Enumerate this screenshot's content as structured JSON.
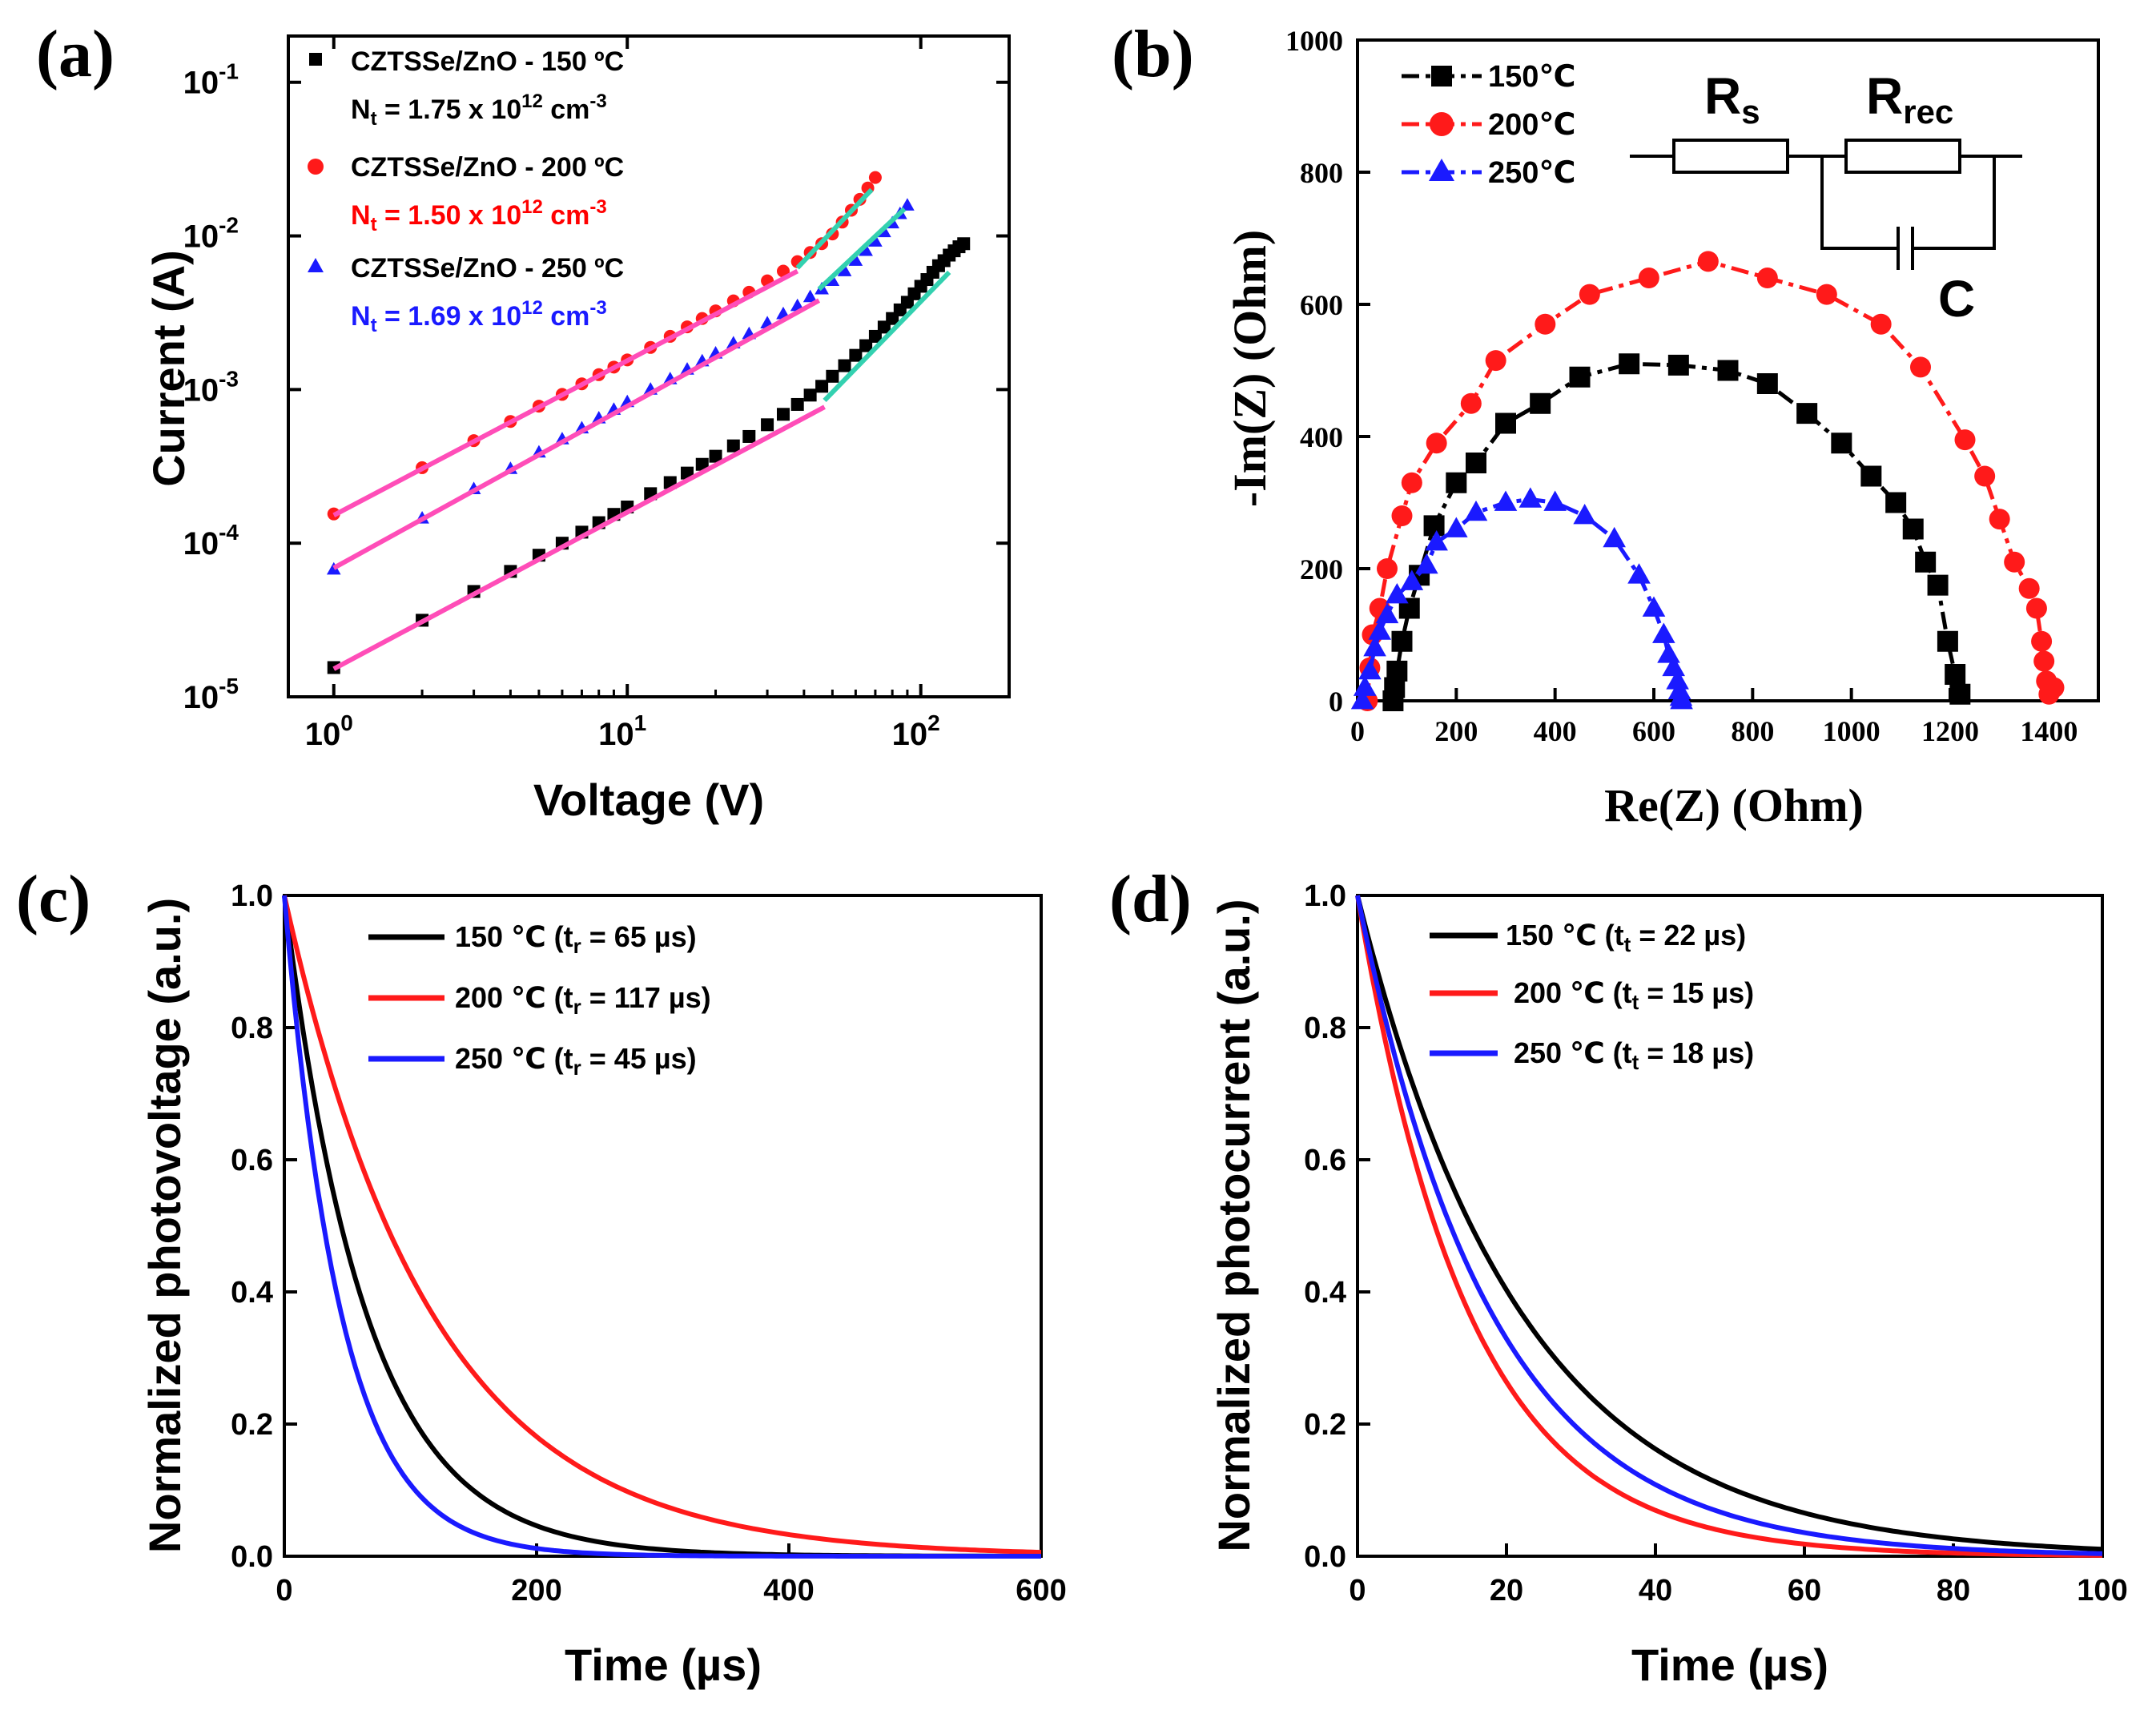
{
  "colors": {
    "black": "#000000",
    "red": "#ff1a1a",
    "blue": "#1a1aff",
    "fit_pink": "#ff4db8",
    "fit_teal": "#33d1b0",
    "red_text": "#ff0000",
    "blue_text": "#1a1aff"
  },
  "chart_data": [
    {
      "panel": "(a)",
      "type": "scatter",
      "xscale": "log",
      "yscale": "log",
      "xlabel": "Voltage (V)",
      "ylabel": "Current (A)",
      "xlim": [
        0.7,
        200
      ],
      "ylim": [
        1e-05,
        0.2
      ],
      "x_tick_labels": [
        {
          "value": 1,
          "base": "10",
          "exp": "0"
        },
        {
          "value": 10,
          "base": "10",
          "exp": "1"
        },
        {
          "value": 100,
          "base": "10",
          "exp": "2"
        }
      ],
      "y_tick_labels": [
        {
          "value": 1e-05,
          "base": "10",
          "exp": "-5"
        },
        {
          "value": 0.0001,
          "base": "10",
          "exp": "-4"
        },
        {
          "value": 0.001,
          "base": "10",
          "exp": "-3"
        },
        {
          "value": 0.01,
          "base": "10",
          "exp": "-2"
        },
        {
          "value": 0.1,
          "base": "10",
          "exp": "-1"
        }
      ],
      "legend": [
        {
          "series": "150",
          "label": "CZTSSe/ZnO - 150 ºC",
          "nt_prefix": "N",
          "nt_sub": "t",
          "nt_value": " = 1.75 x 10",
          "nt_exp": "12",
          "nt_unit": " cm",
          "nt_unit_exp": "-3"
        },
        {
          "series": "200",
          "label": "CZTSSe/ZnO - 200 ºC",
          "nt_prefix": "N",
          "nt_sub": "t",
          "nt_value": " = 1.50 x 10",
          "nt_exp": "12",
          "nt_unit": " cm",
          "nt_unit_exp": "-3"
        },
        {
          "series": "250",
          "label": "CZTSSe/ZnO - 250 ºC",
          "nt_prefix": "N",
          "nt_sub": "t",
          "nt_value": " = 1.69 x 10",
          "nt_exp": "12",
          "nt_unit": " cm",
          "nt_unit_exp": "-3"
        }
      ],
      "series": [
        {
          "name": "150",
          "marker": "square",
          "color": "#000000",
          "x": [
            1,
            2,
            3,
            4,
            5,
            6,
            7,
            8,
            9,
            10,
            12,
            14,
            16,
            18,
            20,
            23,
            26,
            30,
            34,
            38,
            42,
            46,
            50,
            55,
            60,
            65,
            70,
            75,
            80,
            85,
            90,
            95,
            100,
            105,
            110,
            115,
            120,
            125,
            130,
            135,
            140
          ],
          "y": [
            1.55e-05,
            3.15e-05,
            4.85e-05,
            6.55e-05,
            8.35e-05,
            0.0001,
            0.000118,
            0.000136,
            0.000154,
            0.000172,
            0.00021,
            0.000248,
            0.000286,
            0.000326,
            0.000368,
            0.00043,
            0.000495,
            0.00059,
            0.00069,
            0.0008,
            0.00092,
            0.00105,
            0.00122,
            0.00143,
            0.00167,
            0.00193,
            0.00222,
            0.00255,
            0.0029,
            0.0033,
            0.0037,
            0.0042,
            0.0047,
            0.0052,
            0.0058,
            0.0064,
            0.0069,
            0.0075,
            0.008,
            0.0085,
            0.0089
          ],
          "fit_ohmic": {
            "x": [
              1,
              47
            ],
            "y": [
              1.52e-05,
              0.00077
            ]
          },
          "fit_tfl": {
            "x": [
              47,
              125
            ],
            "y": [
              0.00085,
              0.0058
            ]
          }
        },
        {
          "name": "200",
          "marker": "circle",
          "color": "#ff1a1a",
          "x": [
            1,
            2,
            3,
            4,
            5,
            6,
            7,
            8,
            9,
            10,
            12,
            14,
            16,
            18,
            20,
            23,
            26,
            30,
            34,
            38,
            42,
            46,
            50,
            54,
            58,
            62,
            66,
            70
          ],
          "y": [
            0.000155,
            0.00031,
            0.000465,
            0.00062,
            0.00078,
            0.00093,
            0.00109,
            0.00125,
            0.0014,
            0.00156,
            0.00188,
            0.00222,
            0.00256,
            0.0029,
            0.00325,
            0.00378,
            0.0043,
            0.0051,
            0.0059,
            0.0068,
            0.0078,
            0.0089,
            0.0103,
            0.0123,
            0.0147,
            0.0173,
            0.0205,
            0.024
          ],
          "fit_ohmic": {
            "x": [
              1,
              38
            ],
            "y": [
              0.000152,
              0.0059
            ]
          },
          "fit_tfl": {
            "x": [
              38,
              68
            ],
            "y": [
              0.0062,
              0.02
            ]
          }
        },
        {
          "name": "250",
          "marker": "triangle",
          "color": "#1a1aff",
          "x": [
            1,
            2,
            3,
            4,
            5,
            6,
            7,
            8,
            9,
            10,
            12,
            14,
            16,
            18,
            20,
            23,
            26,
            30,
            34,
            38,
            42,
            46,
            50,
            55,
            60,
            65,
            70,
            75,
            80,
            85,
            90
          ],
          "y": [
            6.75e-05,
            0.000145,
            0.000225,
            0.000305,
            0.00039,
            0.000475,
            0.00056,
            0.00065,
            0.00074,
            0.00083,
            0.001,
            0.00117,
            0.00135,
            0.00153,
            0.00172,
            0.002,
            0.0023,
            0.0027,
            0.0031,
            0.0035,
            0.004,
            0.0045,
            0.0051,
            0.0059,
            0.0069,
            0.008,
            0.0092,
            0.0106,
            0.0121,
            0.0139,
            0.0158
          ],
          "fit_ohmic": {
            "x": [
              1,
              45
            ],
            "y": [
              6.9e-05,
              0.0038
            ]
          },
          "fit_tfl": {
            "x": [
              45,
              88
            ],
            "y": [
              0.0045,
              0.015
            ]
          }
        }
      ]
    },
    {
      "panel": "(b)",
      "type": "scatter-line",
      "xlabel": "Re(Z) (Ohm)",
      "ylabel": "-Im(Z) (Ohm)",
      "xlim": [
        0,
        1500
      ],
      "ylim": [
        0,
        1000
      ],
      "x_ticks": [
        0,
        200,
        400,
        600,
        800,
        1000,
        1200,
        1400
      ],
      "y_ticks": [
        0,
        200,
        400,
        600,
        800,
        1000
      ],
      "legend": [
        {
          "series": "150",
          "label": "150℃"
        },
        {
          "series": "200",
          "label": "200℃"
        },
        {
          "series": "250",
          "label": "250℃"
        }
      ],
      "circuit": {
        "rs_base": "R",
        "rs_sub": "s",
        "rrec_base": "R",
        "rrec_sub": "rec",
        "c": "C"
      },
      "series": [
        {
          "name": "150",
          "marker": "square",
          "color": "#000000",
          "linestyle": "dash-dot",
          "x": [
            72,
            75,
            80,
            90,
            105,
            125,
            155,
            200,
            240,
            300,
            370,
            450,
            550,
            650,
            750,
            830,
            910,
            980,
            1040,
            1090,
            1125,
            1150,
            1175,
            1195,
            1210,
            1220
          ],
          "y": [
            0,
            20,
            45,
            90,
            140,
            190,
            265,
            330,
            360,
            420,
            450,
            490,
            510,
            508,
            500,
            480,
            435,
            390,
            340,
            300,
            260,
            210,
            175,
            90,
            40,
            10
          ]
        },
        {
          "name": "200",
          "marker": "circle",
          "color": "#ff1a1a",
          "linestyle": "dash-dot",
          "x": [
            20,
            25,
            30,
            45,
            60,
            90,
            110,
            160,
            230,
            280,
            380,
            470,
            590,
            710,
            830,
            950,
            1060,
            1140,
            1230,
            1270,
            1300,
            1330,
            1360,
            1375,
            1385,
            1390,
            1395,
            1400,
            1410
          ],
          "y": [
            0,
            50,
            100,
            140,
            200,
            280,
            330,
            390,
            450,
            515,
            570,
            615,
            640,
            665,
            640,
            615,
            570,
            505,
            395,
            340,
            275,
            210,
            170,
            140,
            90,
            60,
            30,
            10,
            20
          ]
        },
        {
          "name": "250",
          "marker": "triangle",
          "color": "#1a1aff",
          "linestyle": "dash-dot",
          "x": [
            10,
            15,
            25,
            35,
            45,
            60,
            80,
            110,
            140,
            160,
            200,
            240,
            300,
            350,
            400,
            460,
            520,
            570,
            600,
            620,
            630,
            640,
            648,
            652,
            655,
            656
          ],
          "y": [
            0,
            20,
            45,
            80,
            105,
            130,
            160,
            180,
            205,
            240,
            260,
            285,
            300,
            305,
            300,
            280,
            245,
            190,
            140,
            100,
            70,
            50,
            30,
            15,
            5,
            0
          ]
        }
      ]
    },
    {
      "panel": "(c)",
      "type": "line",
      "xlabel": "Time (µs)",
      "ylabel": "Normalized photovoltage (a.u.)",
      "xlim": [
        0,
        600
      ],
      "ylim": [
        0,
        1.0
      ],
      "x_ticks": [
        0,
        200,
        400,
        600
      ],
      "y_ticks": [
        0.0,
        0.2,
        0.4,
        0.6,
        0.8,
        1.0
      ],
      "legend": [
        {
          "series": "150",
          "label": "150 ℃ (t",
          "sub": "r",
          "rest": " = 65 µs)"
        },
        {
          "series": "200",
          "label": "200 ℃ (t",
          "sub": "r",
          "rest": " = 117 µs)"
        },
        {
          "series": "250",
          "label": "250 ℃ (t",
          "sub": "r",
          "rest": " = 45 µs)"
        }
      ],
      "series": [
        {
          "name": "150",
          "color": "#000000",
          "tau": 65
        },
        {
          "name": "200",
          "color": "#ff1a1a",
          "tau": 117
        },
        {
          "name": "250",
          "color": "#1a1aff",
          "tau": 45
        }
      ]
    },
    {
      "panel": "(d)",
      "type": "line",
      "xlabel": "Time (µs)",
      "ylabel": "Normalized photocurrent (a.u.)",
      "xlim": [
        0,
        100
      ],
      "ylim": [
        0,
        1.0
      ],
      "x_ticks": [
        0,
        20,
        40,
        60,
        80,
        100
      ],
      "y_ticks": [
        0.0,
        0.2,
        0.4,
        0.6,
        0.8,
        1.0
      ],
      "legend": [
        {
          "series": "150",
          "label": "150 ℃  (t",
          "sub": "t",
          "rest": " = 22 µs)"
        },
        {
          "series": "200",
          "label": "200 ℃ (t",
          "sub": "t",
          "rest": " = 15 µs)"
        },
        {
          "series": "250",
          "label": "250 ℃ (t",
          "sub": "t",
          "rest": " = 18 µs)"
        }
      ],
      "series": [
        {
          "name": "150",
          "color": "#000000",
          "tau": 22
        },
        {
          "name": "200",
          "color": "#ff1a1a",
          "tau": 15
        },
        {
          "name": "250",
          "color": "#1a1aff",
          "tau": 18
        }
      ]
    }
  ]
}
